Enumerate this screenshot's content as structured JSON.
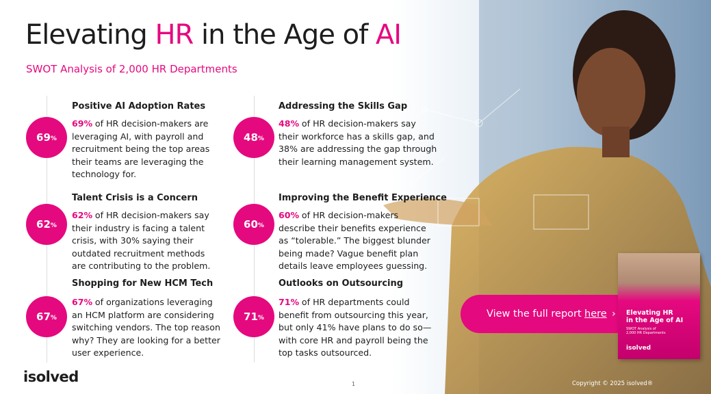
{
  "header": {
    "title": [
      "Elevating",
      "HR",
      "in the Age of",
      "AI"
    ],
    "subtitle": "SWOT Analysis of 2,000 HR Departments"
  },
  "items": [
    {
      "heading": "Positive AI Adoption Rates",
      "badge_number": "69",
      "badge_unit": "%",
      "lead": "69%",
      "text": "of HR decision-makers are leveraging AI, with payroll and recruitment being the top areas their teams are leveraging the technology for."
    },
    {
      "heading": "Talent Crisis is a Concern",
      "badge_number": "62",
      "badge_unit": "%",
      "lead": "62%",
      "text": "of HR decision-makers say their industry is facing a talent crisis, with 30% saying their outdated recruitment methods are contributing to the problem."
    },
    {
      "heading": "Shopping for New HCM Tech",
      "badge_number": "67",
      "badge_unit": "%",
      "lead": "67%",
      "text": "of organizations leveraging an HCM platform are considering switching vendors. The top reason why? They are looking for a better user experience."
    },
    {
      "heading": "Addressing the Skills Gap",
      "badge_number": "48",
      "badge_unit": "%",
      "lead": "48%",
      "text": "of HR decision-makers say their workforce has a skills gap, and 38% are addressing the gap through their learning management system."
    },
    {
      "heading": "Improving the Benefit Experience",
      "badge_number": "60",
      "badge_unit": "%",
      "lead": "60%",
      "text": "of HR decision-makers describe their benefits experience as “tolerable.” The biggest blunder being made? Vague benefit plan details leave employees guessing."
    },
    {
      "heading": "Outlooks on Outsourcing",
      "badge_number": "71",
      "badge_unit": "%",
      "lead": "71%",
      "text": "of HR departments could benefit from outsourcing this year, but only 41% have plans to do so—with core HR and payroll being the top tasks outsourced."
    }
  ],
  "cta": {
    "text": "View the full report",
    "link": "here",
    "arrow": "›"
  },
  "cover": {
    "title": [
      "Elevating HR",
      "in the Age of AI"
    ],
    "subtitle": [
      "SWOT Analysis of",
      "2,000 HR Departments"
    ],
    "brand": "isolved"
  },
  "footer": {
    "logo": "isolved",
    "page": "1",
    "copyright": "Copyright © 2025 isolved®"
  }
}
